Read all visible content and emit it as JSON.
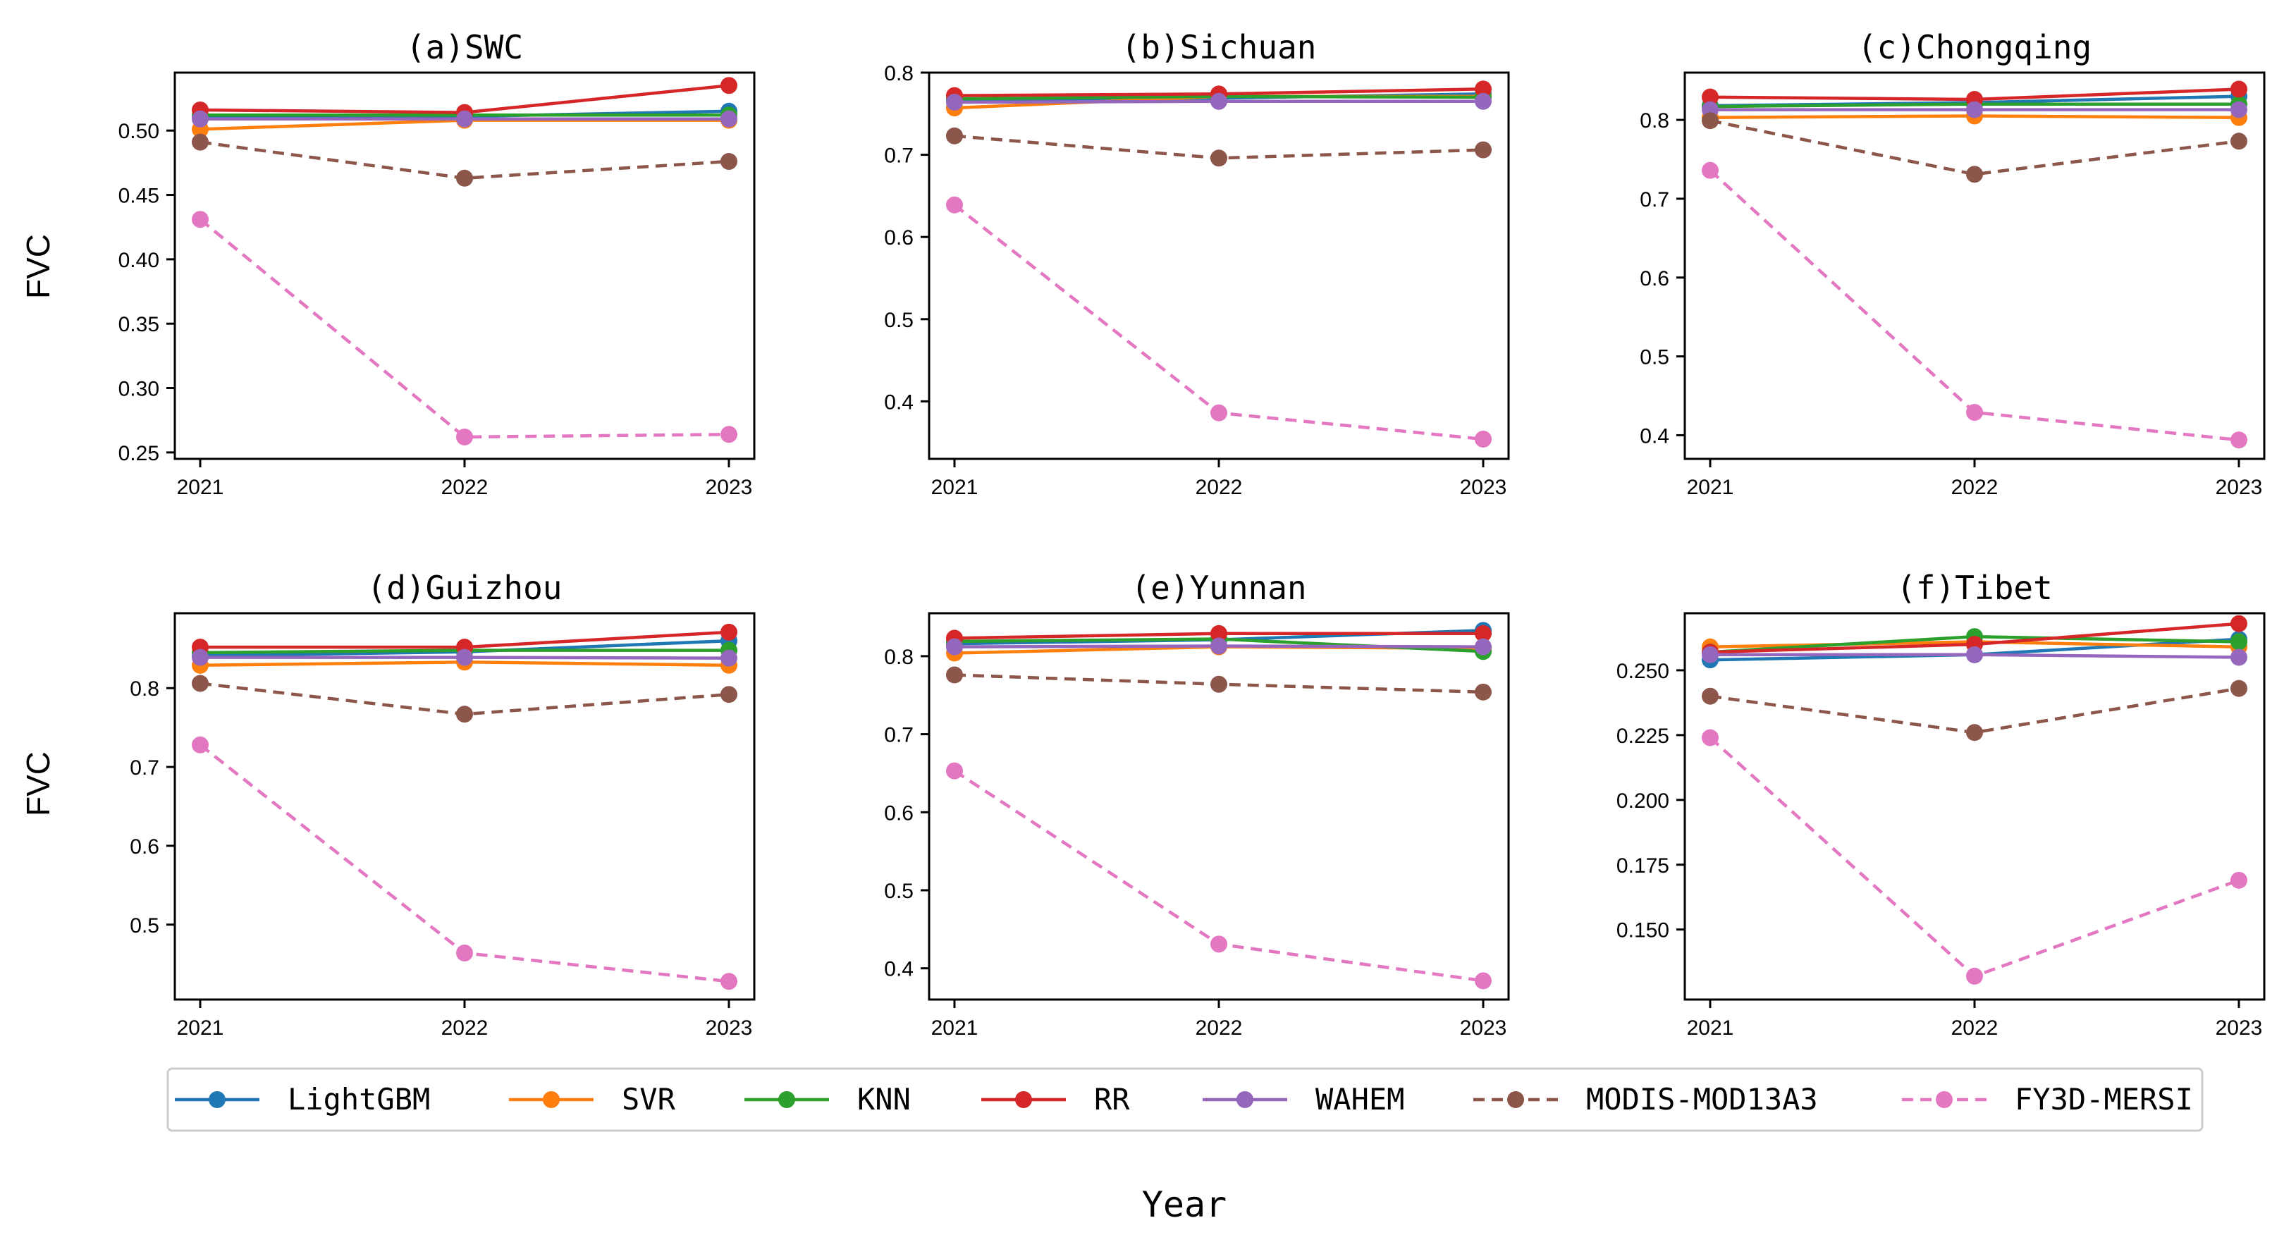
{
  "figure": {
    "xlabel": "Year",
    "ylabel_row1": "FVC",
    "ylabel_row2": "FVC"
  },
  "series_styles": [
    {
      "name": "LightGBM",
      "color": "#1f77b4",
      "dashed": false
    },
    {
      "name": "SVR",
      "color": "#ff7f0e",
      "dashed": false
    },
    {
      "name": "KNN",
      "color": "#2ca02c",
      "dashed": false
    },
    {
      "name": "RR",
      "color": "#d62728",
      "dashed": false
    },
    {
      "name": "WAHEM",
      "color": "#9467bd",
      "dashed": false
    },
    {
      "name": "MODIS-MOD13A3",
      "color": "#8c564b",
      "dashed": true
    },
    {
      "name": "FY3D-MERSI",
      "color": "#e377c2",
      "dashed": true
    }
  ],
  "chart_data": [
    {
      "type": "line",
      "title": "(a)SWC",
      "categories": [
        "2021",
        "2022",
        "2023"
      ],
      "ylim": [
        0.245,
        0.545
      ],
      "yticks": [
        0.25,
        0.3,
        0.35,
        0.4,
        0.45,
        0.5
      ],
      "ytick_labels": [
        "0.25",
        "0.30",
        "0.35",
        "0.40",
        "0.45",
        "0.50"
      ],
      "series": [
        {
          "name": "LightGBM",
          "values": [
            0.511,
            0.511,
            0.515
          ]
        },
        {
          "name": "SVR",
          "values": [
            0.501,
            0.508,
            0.508
          ]
        },
        {
          "name": "KNN",
          "values": [
            0.512,
            0.512,
            0.512
          ]
        },
        {
          "name": "RR",
          "values": [
            0.516,
            0.514,
            0.535
          ]
        },
        {
          "name": "WAHEM",
          "values": [
            0.509,
            0.509,
            0.509
          ]
        },
        {
          "name": "MODIS-MOD13A3",
          "values": [
            0.491,
            0.463,
            0.476
          ]
        },
        {
          "name": "FY3D-MERSI",
          "values": [
            0.431,
            0.262,
            0.264
          ]
        }
      ]
    },
    {
      "type": "line",
      "title": "(b)Sichuan",
      "categories": [
        "2021",
        "2022",
        "2023"
      ],
      "ylim": [
        0.33,
        0.8
      ],
      "yticks": [
        0.4,
        0.5,
        0.6,
        0.7,
        0.8
      ],
      "ytick_labels": [
        "0.4",
        "0.5",
        "0.6",
        "0.7",
        "0.8"
      ],
      "series": [
        {
          "name": "LightGBM",
          "values": [
            0.766,
            0.769,
            0.774
          ]
        },
        {
          "name": "SVR",
          "values": [
            0.757,
            0.771,
            0.771
          ]
        },
        {
          "name": "KNN",
          "values": [
            0.768,
            0.771,
            0.77
          ]
        },
        {
          "name": "RR",
          "values": [
            0.772,
            0.774,
            0.78
          ]
        },
        {
          "name": "WAHEM",
          "values": [
            0.764,
            0.765,
            0.765
          ]
        },
        {
          "name": "MODIS-MOD13A3",
          "values": [
            0.723,
            0.696,
            0.706
          ]
        },
        {
          "name": "FY3D-MERSI",
          "values": [
            0.639,
            0.386,
            0.354
          ]
        }
      ]
    },
    {
      "type": "line",
      "title": "(c)Chongqing",
      "categories": [
        "2021",
        "2022",
        "2023"
      ],
      "ylim": [
        0.37,
        0.86
      ],
      "yticks": [
        0.4,
        0.5,
        0.6,
        0.7,
        0.8
      ],
      "ytick_labels": [
        "0.4",
        "0.5",
        "0.6",
        "0.7",
        "0.8"
      ],
      "series": [
        {
          "name": "LightGBM",
          "values": [
            0.818,
            0.822,
            0.83
          ]
        },
        {
          "name": "SVR",
          "values": [
            0.803,
            0.805,
            0.803
          ]
        },
        {
          "name": "KNN",
          "values": [
            0.817,
            0.82,
            0.82
          ]
        },
        {
          "name": "RR",
          "values": [
            0.829,
            0.826,
            0.839
          ]
        },
        {
          "name": "WAHEM",
          "values": [
            0.813,
            0.813,
            0.813
          ]
        },
        {
          "name": "MODIS-MOD13A3",
          "values": [
            0.799,
            0.731,
            0.773
          ]
        },
        {
          "name": "FY3D-MERSI",
          "values": [
            0.736,
            0.429,
            0.394
          ]
        }
      ]
    },
    {
      "type": "line",
      "title": "(d)Guizhou",
      "categories": [
        "2021",
        "2022",
        "2023"
      ],
      "ylim": [
        0.405,
        0.895
      ],
      "yticks": [
        0.5,
        0.6,
        0.7,
        0.8
      ],
      "ytick_labels": [
        "0.5",
        "0.6",
        "0.7",
        "0.8"
      ],
      "series": [
        {
          "name": "LightGBM",
          "values": [
            0.841,
            0.846,
            0.86
          ]
        },
        {
          "name": "SVR",
          "values": [
            0.829,
            0.833,
            0.829
          ]
        },
        {
          "name": "KNN",
          "values": [
            0.845,
            0.848,
            0.848
          ]
        },
        {
          "name": "RR",
          "values": [
            0.852,
            0.852,
            0.871
          ]
        },
        {
          "name": "WAHEM",
          "values": [
            0.839,
            0.839,
            0.838
          ]
        },
        {
          "name": "MODIS-MOD13A3",
          "values": [
            0.806,
            0.767,
            0.792
          ]
        },
        {
          "name": "FY3D-MERSI",
          "values": [
            0.728,
            0.464,
            0.428
          ]
        }
      ]
    },
    {
      "type": "line",
      "title": "(e)Yunnan",
      "categories": [
        "2021",
        "2022",
        "2023"
      ],
      "ylim": [
        0.36,
        0.855
      ],
      "yticks": [
        0.4,
        0.5,
        0.6,
        0.7,
        0.8
      ],
      "ytick_labels": [
        "0.4",
        "0.5",
        "0.6",
        "0.7",
        "0.8"
      ],
      "series": [
        {
          "name": "LightGBM",
          "values": [
            0.816,
            0.821,
            0.833
          ]
        },
        {
          "name": "SVR",
          "values": [
            0.804,
            0.812,
            0.81
          ]
        },
        {
          "name": "KNN",
          "values": [
            0.819,
            0.822,
            0.806
          ]
        },
        {
          "name": "RR",
          "values": [
            0.823,
            0.829,
            0.829
          ]
        },
        {
          "name": "WAHEM",
          "values": [
            0.812,
            0.813,
            0.812
          ]
        },
        {
          "name": "MODIS-MOD13A3",
          "values": [
            0.776,
            0.764,
            0.754
          ]
        },
        {
          "name": "FY3D-MERSI",
          "values": [
            0.653,
            0.431,
            0.384
          ]
        }
      ]
    },
    {
      "type": "line",
      "title": "(f)Tibet",
      "categories": [
        "2021",
        "2022",
        "2023"
      ],
      "ylim": [
        0.123,
        0.272
      ],
      "yticks": [
        0.15,
        0.175,
        0.2,
        0.225,
        0.25
      ],
      "ytick_labels": [
        "0.150",
        "0.175",
        "0.200",
        "0.225",
        "0.250"
      ],
      "series": [
        {
          "name": "LightGBM",
          "values": [
            0.254,
            0.256,
            0.262
          ]
        },
        {
          "name": "SVR",
          "values": [
            0.259,
            0.261,
            0.259
          ]
        },
        {
          "name": "KNN",
          "values": [
            0.257,
            0.263,
            0.261
          ]
        },
        {
          "name": "RR",
          "values": [
            0.257,
            0.26,
            0.268
          ]
        },
        {
          "name": "WAHEM",
          "values": [
            0.256,
            0.256,
            0.255
          ]
        },
        {
          "name": "MODIS-MOD13A3",
          "values": [
            0.24,
            0.226,
            0.243
          ]
        },
        {
          "name": "FY3D-MERSI",
          "values": [
            0.224,
            0.132,
            0.169
          ]
        }
      ]
    }
  ]
}
